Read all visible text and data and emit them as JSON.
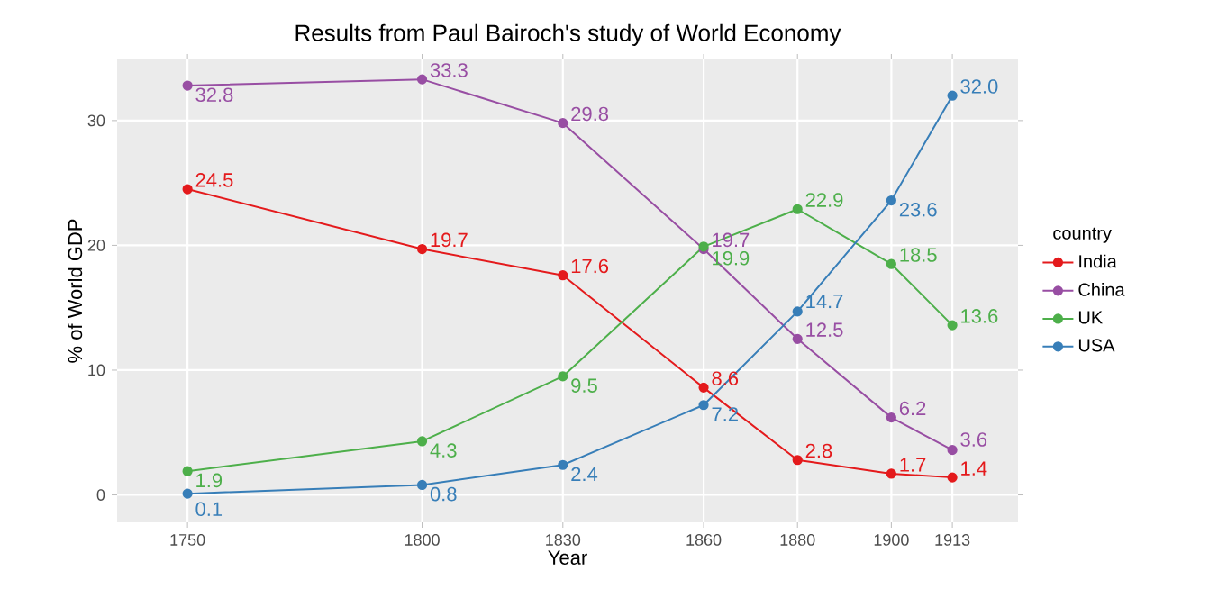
{
  "chart_data": {
    "type": "line",
    "title": "Results from Paul Bairoch's study of World Economy",
    "xlabel": "Year",
    "ylabel": "% of World GDP",
    "legend_title": "country",
    "x": [
      1750,
      1800,
      1830,
      1860,
      1880,
      1900,
      1913
    ],
    "series": [
      {
        "name": "India",
        "color": "#e41a1c",
        "values": [
          24.5,
          19.7,
          17.6,
          8.6,
          2.8,
          1.7,
          1.4
        ],
        "value_labels": [
          "24.5",
          "19.7",
          "17.6",
          "8.6",
          "2.8",
          "1.7",
          "1.4"
        ]
      },
      {
        "name": "China",
        "color": "#984ea3",
        "values": [
          32.8,
          33.3,
          29.8,
          19.7,
          12.5,
          6.2,
          3.6
        ],
        "value_labels": [
          "32.8",
          "33.3",
          "29.8",
          "19.7",
          "12.5",
          "6.2",
          "3.6"
        ]
      },
      {
        "name": "UK",
        "color": "#4daf4a",
        "values": [
          1.9,
          4.3,
          9.5,
          19.9,
          22.9,
          18.5,
          13.6
        ],
        "value_labels": [
          "1.9",
          "4.3",
          "9.5",
          "19.9",
          "22.9",
          "18.5",
          "13.6"
        ]
      },
      {
        "name": "USA",
        "color": "#377eb8",
        "values": [
          0.1,
          0.8,
          2.4,
          7.2,
          14.7,
          23.6,
          32.0
        ],
        "value_labels": [
          "0.1",
          "0.8",
          "2.4",
          "7.2",
          "14.7",
          "23.6",
          "32.0"
        ]
      }
    ],
    "xlim": [
      1735,
      1927
    ],
    "ylim": [
      -2.2,
      34.9
    ],
    "xticks": [
      1750,
      1800,
      1830,
      1860,
      1880,
      1900,
      1913
    ],
    "yticks": [
      0,
      10,
      20,
      30
    ],
    "grid": true,
    "legend": "right",
    "marker": "circle",
    "line_style": "solid"
  }
}
